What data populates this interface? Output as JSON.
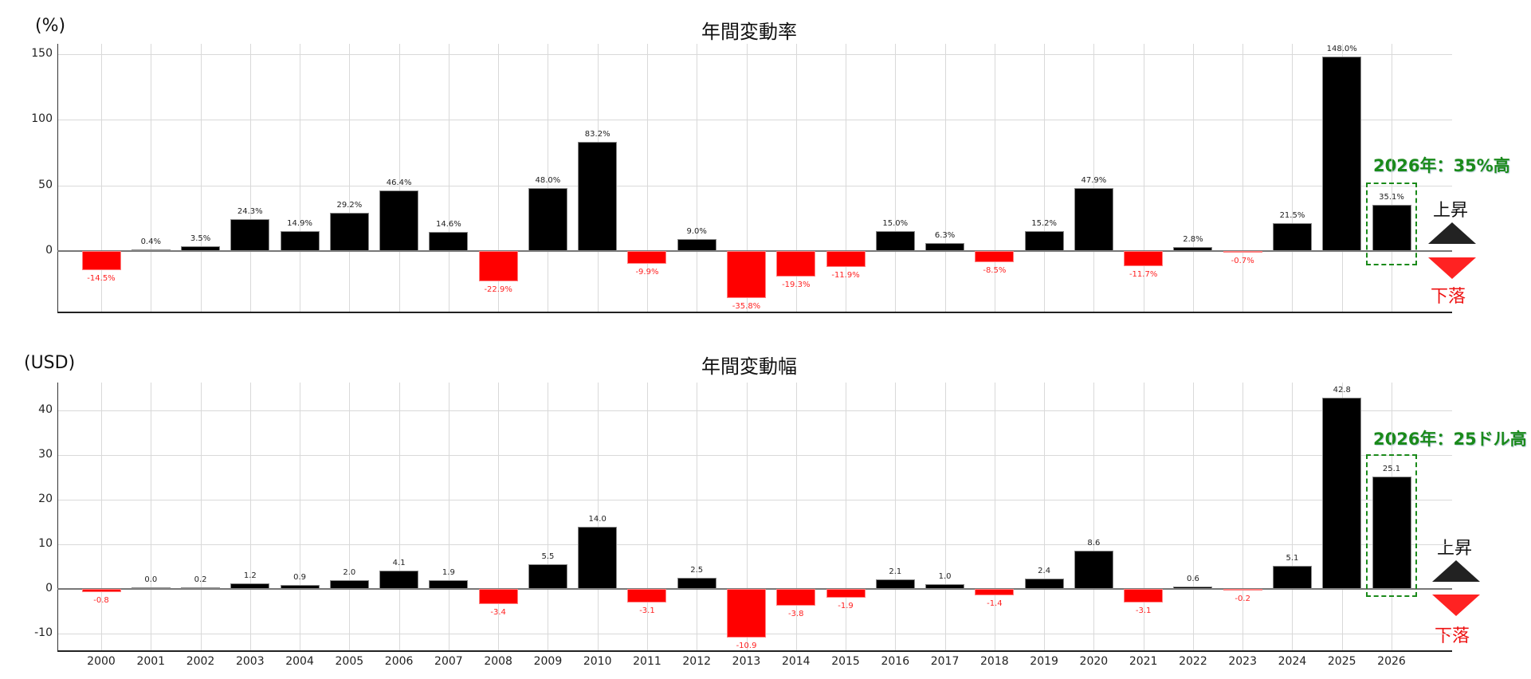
{
  "chart_data": [
    {
      "type": "bar",
      "title": "年間変動率",
      "ylabel": "(%)",
      "xlabel": "",
      "ylim": [
        -47,
        158
      ],
      "yticks": [
        0,
        50,
        100,
        150
      ],
      "grid": true,
      "categories": [
        "2000",
        "2001",
        "2002",
        "2003",
        "2004",
        "2005",
        "2006",
        "2007",
        "2008",
        "2009",
        "2010",
        "2011",
        "2012",
        "2013",
        "2014",
        "2015",
        "2016",
        "2017",
        "2018",
        "2019",
        "2020",
        "2021",
        "2022",
        "2023",
        "2024",
        "2025",
        "2026"
      ],
      "values": [
        -14.5,
        0.4,
        3.5,
        24.3,
        14.9,
        29.2,
        46.4,
        14.6,
        -22.9,
        48.0,
        83.2,
        -9.9,
        9.0,
        -35.8,
        -19.3,
        -11.9,
        15.0,
        6.3,
        -8.5,
        15.2,
        47.9,
        -11.7,
        2.8,
        -0.7,
        21.5,
        148.0,
        35.1
      ],
      "labels": [
        "-14.5%",
        "0.4%",
        "3.5%",
        "24.3%",
        "14.9%",
        "29.2%",
        "46.4%",
        "14.6%",
        "-22.9%",
        "48.0%",
        "83.2%",
        "-9.9%",
        "9.0%",
        "-35.8%",
        "-19.3%",
        "-11.9%",
        "15.0%",
        "6.3%",
        "-8.5%",
        "15.2%",
        "47.9%",
        "-11.7%",
        "2.8%",
        "-0.7%",
        "21.5%",
        "148.0%",
        "35.1%"
      ],
      "annotation": "2026年：35%高",
      "highlight_category": "2026",
      "legend": {
        "up": "上昇",
        "down": "下落"
      }
    },
    {
      "type": "bar",
      "title": "年間変動幅",
      "ylabel": "(USD)",
      "xlabel": "",
      "ylim": [
        -14,
        46
      ],
      "yticks": [
        -10,
        0,
        10,
        20,
        30,
        40
      ],
      "grid": true,
      "categories": [
        "2000",
        "2001",
        "2002",
        "2003",
        "2004",
        "2005",
        "2006",
        "2007",
        "2008",
        "2009",
        "2010",
        "2011",
        "2012",
        "2013",
        "2014",
        "2015",
        "2016",
        "2017",
        "2018",
        "2019",
        "2020",
        "2021",
        "2022",
        "2023",
        "2024",
        "2025",
        "2026"
      ],
      "values": [
        -0.8,
        0.0,
        0.2,
        1.2,
        0.9,
        2.0,
        4.1,
        1.9,
        -3.4,
        5.5,
        14.0,
        -3.1,
        2.5,
        -10.9,
        -3.8,
        -1.9,
        2.1,
        1.0,
        -1.4,
        2.4,
        8.6,
        -3.1,
        0.6,
        -0.2,
        5.1,
        42.8,
        25.1
      ],
      "labels": [
        "-0.8",
        "0.0",
        "0.2",
        "1.2",
        "0.9",
        "2.0",
        "4.1",
        "1.9",
        "-3.4",
        "5.5",
        "14.0",
        "-3.1",
        "2.5",
        "-10.9",
        "-3.8",
        "-1.9",
        "2.1",
        "1.0",
        "-1.4",
        "2.4",
        "8.6",
        "-3.1",
        "0.6",
        "-0.2",
        "5.1",
        "42.8",
        "25.1"
      ],
      "annotation": "2026年：25ドル高",
      "highlight_category": "2026",
      "legend": {
        "up": "上昇",
        "down": "下落"
      }
    }
  ],
  "colors": {
    "up": "#000000",
    "down": "#ff0000",
    "highlight": "#1a8a1a",
    "grid": "#d9d9d9"
  }
}
